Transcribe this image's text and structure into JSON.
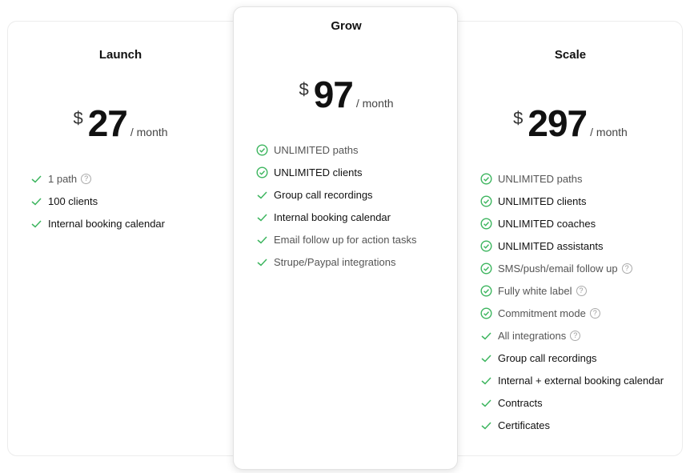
{
  "colors": {
    "check": "#3cb55e"
  },
  "plans": [
    {
      "name": "Launch",
      "currency": "$",
      "price": "27",
      "period": "/  month",
      "features": [
        {
          "text": "1 path",
          "icon": "check-icon",
          "muted": true,
          "help": true
        },
        {
          "text": "100 clients",
          "icon": "check-icon"
        },
        {
          "text": "Internal booking calendar",
          "icon": "check-icon"
        }
      ]
    },
    {
      "name": "Grow",
      "currency": "$",
      "price": "97",
      "period": "/  month",
      "features": [
        {
          "text": "UNLIMITED paths",
          "icon": "check-circle-icon",
          "muted": true
        },
        {
          "text": "UNLIMITED clients",
          "icon": "check-circle-icon"
        },
        {
          "text": "Group call recordings",
          "icon": "check-icon"
        },
        {
          "text": "Internal booking calendar",
          "icon": "check-icon"
        },
        {
          "text": "Email follow up for action tasks",
          "icon": "check-icon",
          "muted": true
        },
        {
          "text": "Strupe/Paypal integrations",
          "icon": "check-icon",
          "muted": true
        }
      ]
    },
    {
      "name": "Scale",
      "currency": "$",
      "price": "297",
      "period": "/  month",
      "features": [
        {
          "text": "UNLIMITED paths",
          "icon": "check-circle-icon",
          "muted": true
        },
        {
          "text": "UNLIMITED clients",
          "icon": "check-circle-icon"
        },
        {
          "text": "UNLIMITED coaches",
          "icon": "check-circle-icon"
        },
        {
          "text": "UNLIMITED assistants",
          "icon": "check-circle-icon"
        },
        {
          "text": "SMS/push/email follow up",
          "icon": "check-circle-icon",
          "muted": true,
          "help": true
        },
        {
          "text": "Fully white label",
          "icon": "check-circle-icon",
          "muted": true,
          "help": true
        },
        {
          "text": "Commitment mode",
          "icon": "check-circle-icon",
          "muted": true,
          "help": true
        },
        {
          "text": "All integrations",
          "icon": "check-icon",
          "muted": true,
          "help": true
        },
        {
          "text": "Group call recordings",
          "icon": "check-icon"
        },
        {
          "text": "Internal + external booking calendar",
          "icon": "check-icon"
        },
        {
          "text": "Contracts",
          "icon": "check-icon"
        },
        {
          "text": "Certificates",
          "icon": "check-icon"
        }
      ]
    }
  ]
}
